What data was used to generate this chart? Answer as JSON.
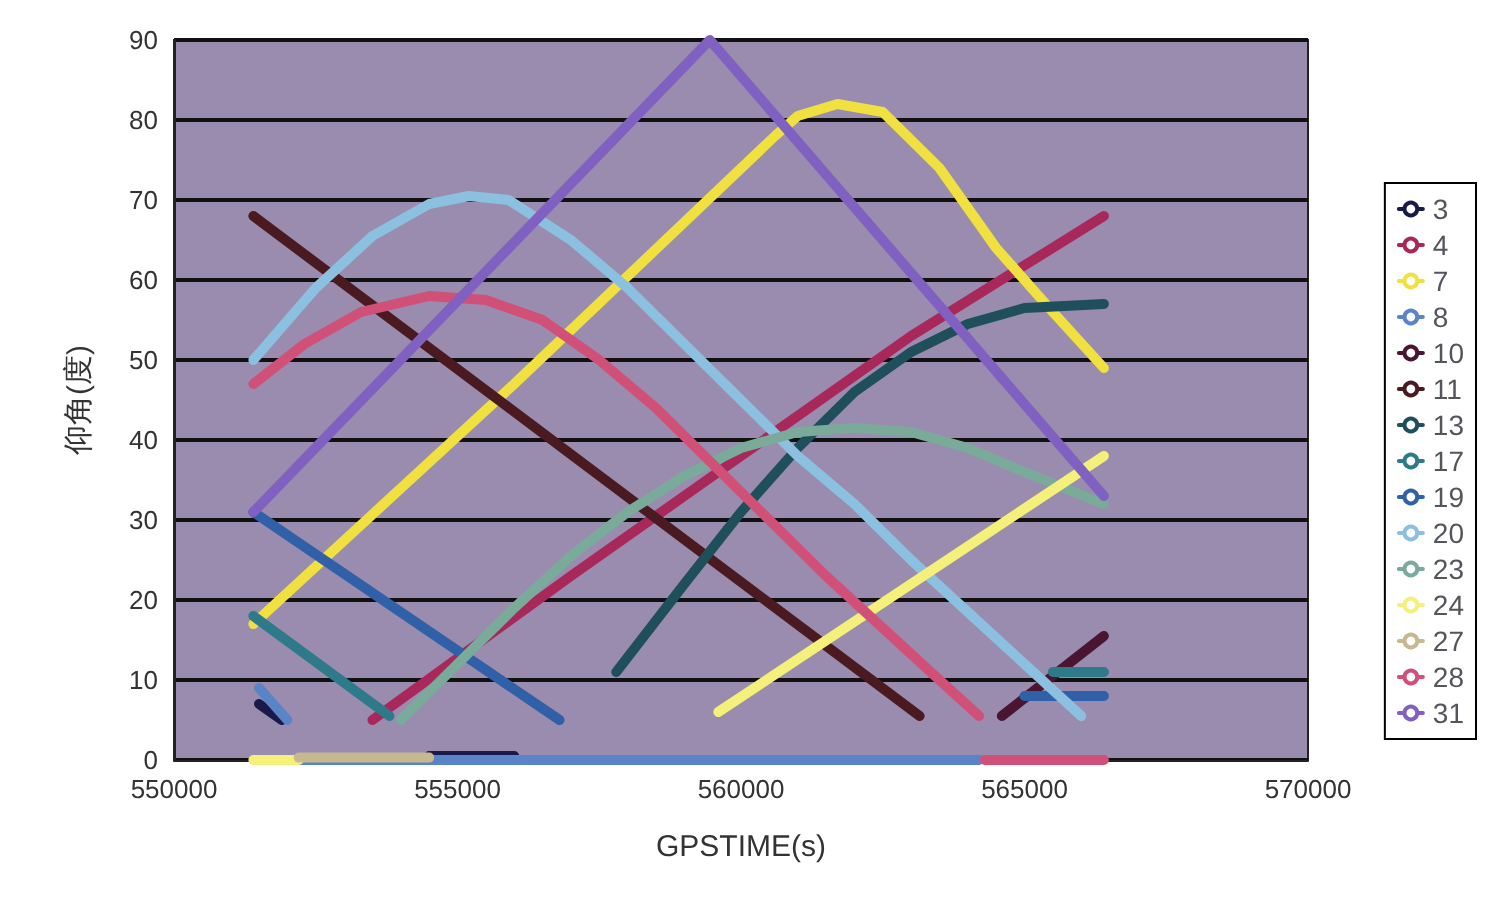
{
  "chart_data": {
    "type": "line",
    "xlabel": "GPSTIME(s)",
    "ylabel": "仰角(度)",
    "xlim": [
      550000,
      570000
    ],
    "xticks": [
      550000,
      555000,
      560000,
      565000,
      570000
    ],
    "ylim": [
      0,
      90
    ],
    "yticks": [
      0,
      10,
      20,
      30,
      40,
      50,
      60,
      70,
      80,
      90
    ],
    "grid": "y",
    "legend": "right",
    "series": [
      {
        "name": "3",
        "color": "#1a1a4a",
        "x": [
          551500,
          551900,
          552000,
          554500,
          556000
        ],
        "values": [
          7,
          5,
          null,
          0.5,
          0.5
        ]
      },
      {
        "name": "4",
        "color": "#a8285a",
        "x": [
          553500,
          557000,
          560000,
          563000,
          566400
        ],
        "values": [
          5,
          23,
          38,
          53,
          68
        ]
      },
      {
        "name": "7",
        "color": "#f0e040",
        "x": [
          551400,
          556000,
          560600,
          561000,
          561700,
          562500,
          563500,
          564500,
          565500,
          566400
        ],
        "values": [
          17,
          47,
          78,
          80.5,
          82,
          81,
          74,
          64,
          56,
          49
        ]
      },
      {
        "name": "8",
        "color": "#5a84c8",
        "x": [
          551500,
          552000,
          552100,
          552200,
          564200
        ],
        "values": [
          9,
          5,
          null,
          0,
          0
        ]
      },
      {
        "name": "10",
        "color": "#4a1530",
        "x": [
          564600,
          566400
        ],
        "values": [
          5.5,
          15.5
        ]
      },
      {
        "name": "11",
        "color": "#4a1a20",
        "x": [
          551400,
          563150
        ],
        "values": [
          68,
          5.5
        ]
      },
      {
        "name": "13",
        "color": "#1f4f5a",
        "x": [
          557800,
          559000,
          560000,
          561000,
          562000,
          563000,
          564000,
          565000,
          566400
        ],
        "values": [
          11,
          22,
          31,
          39,
          46,
          51,
          54.5,
          56.5,
          57
        ]
      },
      {
        "name": "17",
        "color": "#2f7a8a",
        "x": [
          551400,
          553800,
          560000,
          565500,
          566400
        ],
        "values": [
          18,
          5.5,
          null,
          11,
          11
        ]
      },
      {
        "name": "19",
        "color": "#3060a8",
        "x": [
          551400,
          556800,
          560000,
          565000,
          566400
        ],
        "values": [
          31,
          5,
          null,
          8,
          8
        ]
      },
      {
        "name": "20",
        "color": "#8cc0e0",
        "x": [
          551400,
          552500,
          553500,
          554500,
          555200,
          555900,
          557000,
          558000,
          559000,
          560000,
          561000,
          562000,
          563000,
          564000,
          565000,
          566000
        ],
        "values": [
          50,
          59,
          65.5,
          69.5,
          70.5,
          70,
          65,
          59,
          52,
          45,
          38,
          32,
          25,
          18.5,
          12,
          5.5
        ]
      },
      {
        "name": "23",
        "color": "#7aaa9a",
        "x": [
          554000,
          555000,
          556000,
          557000,
          558000,
          559000,
          560000,
          561000,
          562000,
          563000,
          564000,
          565000,
          566400
        ],
        "values": [
          5,
          12,
          19,
          25.5,
          31,
          35.5,
          39,
          41,
          41.5,
          41,
          39,
          36,
          32
        ]
      },
      {
        "name": "24",
        "color": "#f5f07a",
        "x": [
          551400,
          552200,
          552300,
          559600,
          566400
        ],
        "values": [
          0,
          0,
          null,
          6,
          38
        ]
      },
      {
        "name": "27",
        "color": "#c8b890",
        "x": [
          552200,
          554500
        ],
        "values": [
          0.3,
          0.3
        ]
      },
      {
        "name": "28",
        "color": "#d05078",
        "x": [
          551400,
          552300,
          553300,
          554500,
          555500,
          556500,
          557500,
          558500,
          559500,
          560500,
          561500,
          562500,
          563500,
          564200,
          564250,
          564300,
          566400
        ],
        "values": [
          47,
          52,
          56,
          58,
          57.5,
          55,
          50,
          44,
          37,
          30,
          23,
          16.5,
          10,
          5.5,
          null,
          0,
          0
        ]
      },
      {
        "name": "31",
        "color": "#8060c0",
        "x": [
          551400,
          559450,
          566400
        ],
        "values": [
          31,
          90,
          33
        ]
      }
    ]
  }
}
